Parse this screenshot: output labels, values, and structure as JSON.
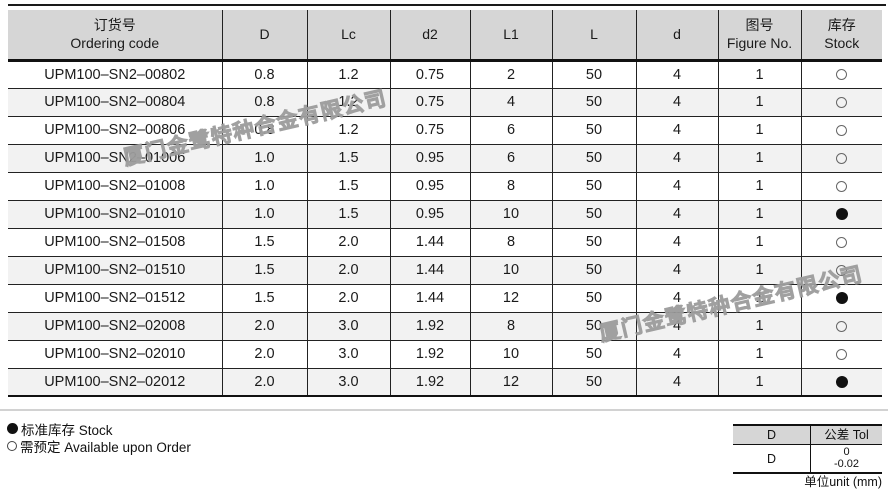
{
  "watermark": {
    "text": "厦门金鹭特种合金有限公司"
  },
  "main_table": {
    "columns": [
      {
        "id": "ordering-code",
        "label_zh": "订货号",
        "label_en": "Ordering code"
      },
      {
        "id": "D",
        "label": "D"
      },
      {
        "id": "Lc",
        "label": "Lc"
      },
      {
        "id": "d2",
        "label": "d2"
      },
      {
        "id": "L1",
        "label": "L1"
      },
      {
        "id": "L",
        "label": "L"
      },
      {
        "id": "d",
        "label": "d"
      },
      {
        "id": "figure-no",
        "label_zh": "图号",
        "label_en": "Figure No."
      },
      {
        "id": "stock",
        "label_zh": "库存",
        "label_en": "Stock"
      }
    ],
    "rows": [
      {
        "cells": [
          "UPM100–SN2–00802",
          "0.8",
          "1.2",
          "0.75",
          "2",
          "50",
          "4",
          "1",
          "○"
        ]
      },
      {
        "cells": [
          "UPM100–SN2–00804",
          "0.8",
          "1.2",
          "0.75",
          "4",
          "50",
          "4",
          "1",
          "○"
        ]
      },
      {
        "cells": [
          "UPM100–SN2–00806",
          "0.8",
          "1.2",
          "0.75",
          "6",
          "50",
          "4",
          "1",
          "○"
        ]
      },
      {
        "cells": [
          "UPM100–SN2–01006",
          "1.0",
          "1.5",
          "0.95",
          "6",
          "50",
          "4",
          "1",
          "○"
        ]
      },
      {
        "cells": [
          "UPM100–SN2–01008",
          "1.0",
          "1.5",
          "0.95",
          "8",
          "50",
          "4",
          "1",
          "○"
        ]
      },
      {
        "cells": [
          "UPM100–SN2–01010",
          "1.0",
          "1.5",
          "0.95",
          "10",
          "50",
          "4",
          "1",
          "●"
        ]
      },
      {
        "cells": [
          "UPM100–SN2–01508",
          "1.5",
          "2.0",
          "1.44",
          "8",
          "50",
          "4",
          "1",
          "○"
        ]
      },
      {
        "cells": [
          "UPM100–SN2–01510",
          "1.5",
          "2.0",
          "1.44",
          "10",
          "50",
          "4",
          "1",
          "○"
        ]
      },
      {
        "cells": [
          "UPM100–SN2–01512",
          "1.5",
          "2.0",
          "1.44",
          "12",
          "50",
          "4",
          "1",
          "●"
        ]
      },
      {
        "cells": [
          "UPM100–SN2–02008",
          "2.0",
          "3.0",
          "1.92",
          "8",
          "50",
          "4",
          "1",
          "○"
        ]
      },
      {
        "cells": [
          "UPM100–SN2–02010",
          "2.0",
          "3.0",
          "1.92",
          "10",
          "50",
          "4",
          "1",
          "○"
        ]
      },
      {
        "cells": [
          "UPM100–SN2–02012",
          "2.0",
          "3.0",
          "1.92",
          "12",
          "50",
          "4",
          "1",
          "●"
        ]
      }
    ]
  },
  "legend": {
    "items": [
      {
        "symbol": "●",
        "label": "标准库存 Stock"
      },
      {
        "symbol": "○",
        "label": "需预定 Available upon Order"
      }
    ]
  },
  "tolerance_table": {
    "headers": [
      "D",
      "公差 Tol"
    ],
    "row": {
      "dim": "D",
      "tol_upper": "0",
      "tol_lower": "-0.02"
    }
  },
  "unit_note": "单位unit (mm)",
  "colors": {
    "header_bg": "#d6d6d6",
    "alt_row_bg": "#f2f2f2",
    "border": "#1a1a1a",
    "rule_light": "#d2d2d2",
    "watermark_stroke": "#969696"
  }
}
